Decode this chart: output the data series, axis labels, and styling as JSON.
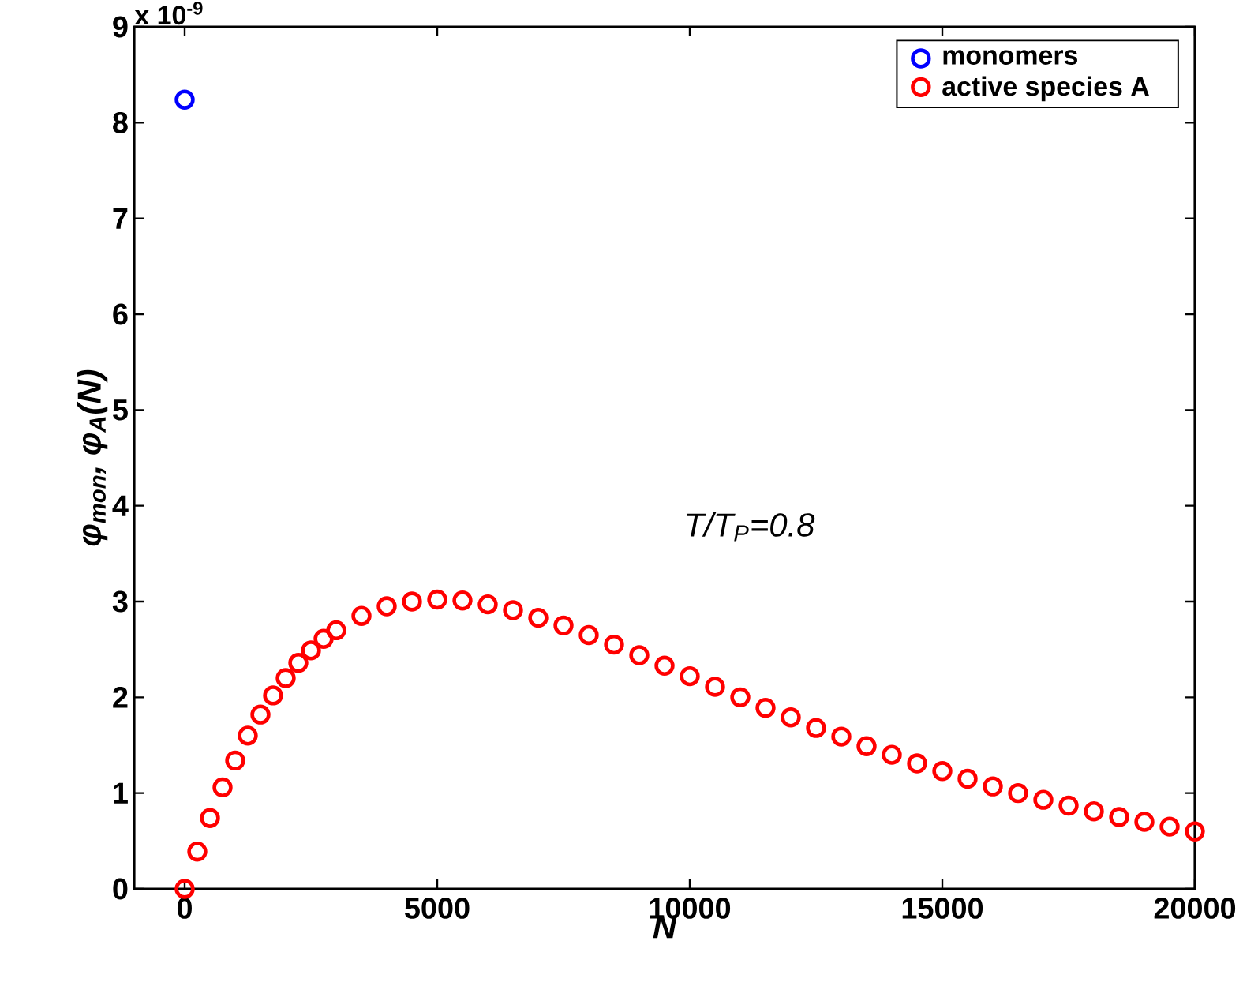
{
  "chart_data": {
    "type": "scatter",
    "xlabel": "N",
    "ylabel": "φ$_{mon}$, φ$_{A}$(N)",
    "annotations": [
      "x 10$^{-9}$",
      "T/T$_{P}$=0.8"
    ],
    "xlim": [
      -1000,
      20000
    ],
    "xticks": [
      0,
      5000,
      10000,
      15000,
      20000
    ],
    "ylim": [
      0,
      9
    ],
    "yticks": [
      0,
      1,
      2,
      3,
      4,
      5,
      6,
      7,
      8,
      9
    ],
    "marker": "circle",
    "legend": "top right",
    "series": [
      {
        "name": "monomers",
        "color": "#0000ff",
        "x": [
          0
        ],
        "values": [
          8.24
        ]
      },
      {
        "name": "active species A",
        "color": "#ff0000",
        "x": [
          0,
          250,
          500,
          750,
          1000,
          1250,
          1500,
          1750,
          2000,
          2250,
          2500,
          2750,
          3000,
          3500,
          4000,
          4500,
          5000,
          5500,
          6000,
          6500,
          7000,
          7500,
          8000,
          8500,
          9000,
          9500,
          10000,
          10500,
          11000,
          11500,
          12000,
          12500,
          13000,
          13500,
          14000,
          14500,
          15000,
          15500,
          16000,
          16500,
          17000,
          17500,
          18000,
          18500,
          19000,
          19500,
          20000
        ],
        "values": [
          0,
          0.39,
          0.74,
          1.06,
          1.34,
          1.6,
          1.82,
          2.02,
          2.2,
          2.36,
          2.49,
          2.61,
          2.7,
          2.85,
          2.95,
          3.0,
          3.02,
          3.01,
          2.97,
          2.91,
          2.83,
          2.75,
          2.65,
          2.55,
          2.44,
          2.33,
          2.22,
          2.11,
          2.0,
          1.89,
          1.79,
          1.68,
          1.59,
          1.49,
          1.4,
          1.31,
          1.23,
          1.15,
          1.07,
          1.0,
          0.93,
          0.87,
          0.81,
          0.75,
          0.7,
          0.65,
          0.6
        ]
      }
    ]
  }
}
